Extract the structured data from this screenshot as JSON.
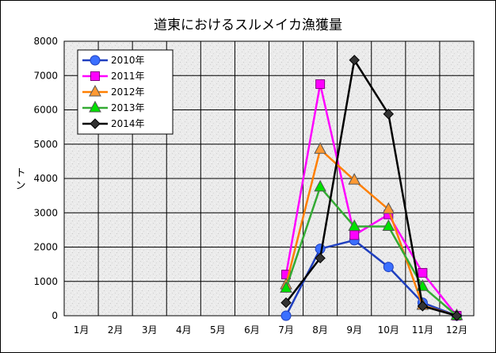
{
  "chart_data": {
    "type": "line",
    "title": "道東におけるスルメイカ漁獲量",
    "ylabel": "トン",
    "xlabel": "",
    "categories": [
      "1月",
      "2月",
      "3月",
      "4月",
      "5月",
      "6月",
      "7月",
      "8月",
      "9月",
      "10月",
      "11月",
      "12月"
    ],
    "ylim": [
      0,
      8000
    ],
    "yticks": [
      "0",
      "1000",
      "2000",
      "3000",
      "4000",
      "5000",
      "6000",
      "7000",
      "8000"
    ],
    "grid": true,
    "legend_position": "top-left",
    "series": [
      {
        "name": "2010年",
        "color": "#1f3fbf",
        "fill": "#3b6fff",
        "marker": "circle",
        "values": [
          null,
          null,
          null,
          null,
          null,
          null,
          0,
          1950,
          2200,
          1420,
          380,
          0
        ]
      },
      {
        "name": "2011年",
        "color": "#ff00ff",
        "fill": "#ff00ff",
        "marker": "square",
        "values": [
          null,
          null,
          null,
          null,
          null,
          null,
          1200,
          6750,
          2350,
          2950,
          1250,
          0
        ]
      },
      {
        "name": "2012年",
        "color": "#ff7f00",
        "fill": "#ff9933",
        "marker": "triangle",
        "values": [
          null,
          null,
          null,
          null,
          null,
          null,
          900,
          4850,
          3950,
          3100,
          300,
          0
        ]
      },
      {
        "name": "2013年",
        "color": "#33aa33",
        "fill": "#00e000",
        "marker": "triangle",
        "values": [
          null,
          null,
          null,
          null,
          null,
          null,
          800,
          3750,
          2600,
          2600,
          850,
          0
        ]
      },
      {
        "name": "2014年",
        "color": "#000000",
        "fill": "#333333",
        "marker": "diamond",
        "values": [
          null,
          null,
          null,
          null,
          null,
          null,
          380,
          1680,
          7450,
          5880,
          280,
          0
        ]
      }
    ]
  }
}
